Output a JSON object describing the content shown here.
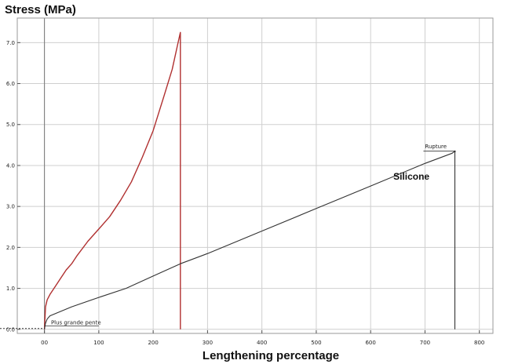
{
  "chart_data": {
    "type": "line",
    "title": "",
    "ylabel": "Stress (MPa)",
    "xlabel": "Lengthening percentage",
    "xlim": [
      -50,
      825
    ],
    "ylim": [
      -0.1,
      7.6
    ],
    "x_ticks": [
      0,
      100,
      200,
      300,
      400,
      500,
      600,
      700,
      800
    ],
    "x_tick_labels": [
      "00",
      "100",
      "200",
      "300",
      "400",
      "500",
      "600",
      "700",
      "800"
    ],
    "y_ticks": [
      0,
      1,
      2,
      3,
      4,
      5,
      6,
      7
    ],
    "y_tick_labels": [
      "0.0",
      "1.0",
      "2.0",
      "3.0",
      "4.0",
      "5.0",
      "6.0",
      "7.0"
    ],
    "grid": true,
    "series": [
      {
        "name": "",
        "color": "#b03030",
        "x": [
          0,
          2,
          5,
          10,
          20,
          30,
          40,
          50,
          60,
          80,
          100,
          120,
          140,
          160,
          180,
          200,
          220,
          235,
          245,
          250,
          250
        ],
        "y": [
          0.0,
          0.55,
          0.72,
          0.85,
          1.05,
          1.25,
          1.45,
          1.6,
          1.8,
          2.15,
          2.45,
          2.75,
          3.15,
          3.6,
          4.2,
          4.85,
          5.7,
          6.35,
          6.95,
          7.25,
          0.0
        ]
      },
      {
        "name": "Silicone",
        "color": "#333333",
        "x": [
          0,
          2,
          5,
          10,
          50,
          100,
          150,
          200,
          250,
          300,
          400,
          500,
          600,
          700,
          750,
          755,
          755
        ],
        "y": [
          0.0,
          0.15,
          0.25,
          0.33,
          0.55,
          0.78,
          1.0,
          1.3,
          1.6,
          1.85,
          2.4,
          2.95,
          3.5,
          4.05,
          4.3,
          4.35,
          0.0
        ]
      }
    ],
    "annotations": [
      {
        "text": "Plus grande pente",
        "x": 12,
        "y": 0.12
      },
      {
        "text": "Rupture",
        "x": 700,
        "y": 4.4
      },
      {
        "text": "Silicone",
        "x": 675,
        "y": 3.65
      }
    ]
  }
}
